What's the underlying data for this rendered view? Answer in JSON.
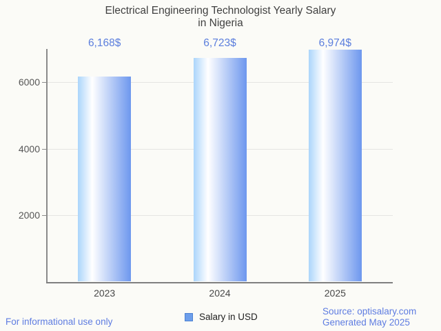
{
  "title": {
    "line1": "Electrical Engineering Technologist Yearly Salary",
    "line2": "in Nigeria"
  },
  "chart_data": {
    "type": "bar",
    "categories": [
      "2023",
      "2024",
      "2025"
    ],
    "series": [
      {
        "name": "Salary in USD",
        "values": [
          6168,
          6723,
          6974
        ]
      }
    ],
    "value_labels": [
      "6,168$",
      "6,723$",
      "6,974$"
    ],
    "title": "Electrical Engineering Technologist Yearly Salary in Nigeria",
    "xlabel": "",
    "ylabel": "",
    "ylim": [
      0,
      7000
    ],
    "yticks": [
      2000,
      4000,
      6000
    ],
    "grid": true,
    "legend_position": "bottom"
  },
  "legend": {
    "label": "Salary in USD"
  },
  "footer": {
    "left": "For informational use only",
    "source": "Source: optisalary.com",
    "generated": "Generated May 2025"
  },
  "colors": {
    "accent_blue": "#5b7edd",
    "footer_blue": "#5e7ce1",
    "bar_gradient_left": "#abd5fb",
    "bar_gradient_mid": "#ffffff",
    "bar_gradient_right": "#6d97ee",
    "legend_swatch": "#6d9eeb",
    "legend_swatch_border": "#4d82d2",
    "background": "#fbfbf7"
  }
}
